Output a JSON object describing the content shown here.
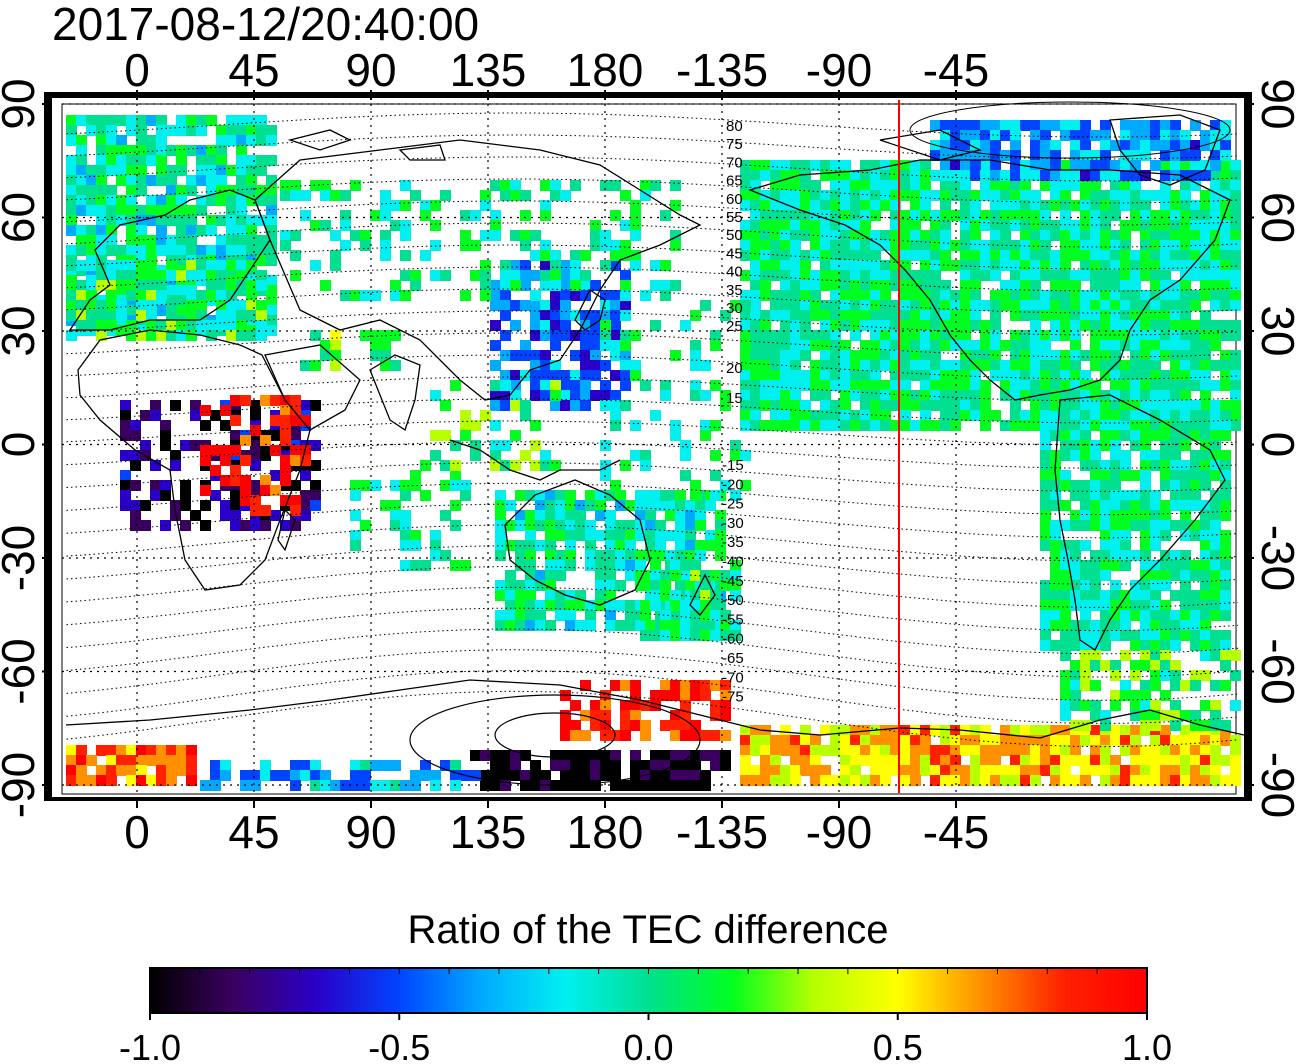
{
  "timestamp": "2017-08-12/20:40:00",
  "axes": {
    "top_lon_labels": [
      "0",
      "45",
      "90",
      "135",
      "180",
      "-135",
      "-90",
      "-45"
    ],
    "bottom_lon_labels": [
      "0",
      "45",
      "90",
      "135",
      "180",
      "-135",
      "-90",
      "-45"
    ],
    "left_lat_labels": [
      "90",
      "60",
      "30",
      "0",
      "-30",
      "-60",
      "-90"
    ],
    "right_lat_labels": [
      "90",
      "60",
      "30",
      "0",
      "-30",
      "-60",
      "-90"
    ]
  },
  "contour_labels_north": [
    "80",
    "75",
    "70",
    "65",
    "60",
    "55",
    "50",
    "45",
    "40",
    "35",
    "30",
    "25",
    "20",
    "15"
  ],
  "contour_labels_south": [
    "-15",
    "-20",
    "-25",
    "-30",
    "-35",
    "-40",
    "-45",
    "-50",
    "-55",
    "-60",
    "-65",
    "-70",
    "-75"
  ],
  "colorbar": {
    "title": "Ratio of the TEC difference",
    "min": -1.0,
    "max": 1.0,
    "tick_labels": [
      "-1.0",
      "-0.5",
      "0.0",
      "0.5",
      "1.0"
    ],
    "colors": [
      "#000000",
      "#3a0060",
      "#2a00c8",
      "#0044ff",
      "#00aaff",
      "#00f0f0",
      "#00e090",
      "#00ff20",
      "#b8ff00",
      "#ffff00",
      "#ff9000",
      "#ff2000",
      "#ff0000"
    ]
  },
  "colors": {
    "meridian_marker": "#ff0000",
    "coastline": "#000000",
    "grid": "#000000"
  }
}
